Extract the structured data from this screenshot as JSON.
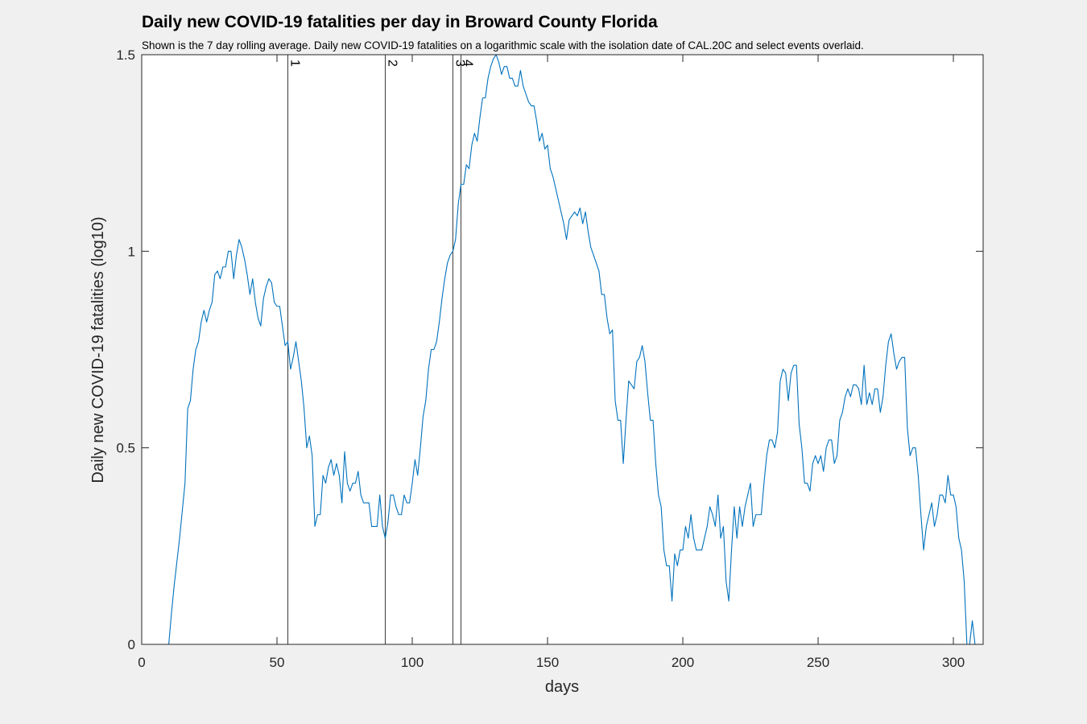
{
  "chart_data": {
    "type": "line",
    "title": "Daily new COVID-19 fatalities per day in Broward County Florida",
    "subtitle": "Shown is the 7 day rolling average. Daily new COVID-19 fatalities on a logarithmic scale with the isolation date of CAL.20C and select events overlaid.",
    "xlabel": "days",
    "ylabel": "Daily new COVID-19 fatalities (log10)",
    "xlim": [
      0,
      311
    ],
    "ylim": [
      0,
      1.5
    ],
    "x_ticks": [
      0,
      50,
      100,
      150,
      200,
      250,
      300
    ],
    "x_tick_labels": [
      "0",
      "50",
      "100",
      "150",
      "200",
      "250",
      "300"
    ],
    "y_ticks": [
      0,
      0.5,
      1,
      1.5
    ],
    "y_tick_labels": [
      "0",
      "0.5",
      "1",
      "1.5"
    ],
    "grid": false,
    "line_color": "#0072bd",
    "events": [
      {
        "label": "1",
        "x": 54
      },
      {
        "label": "2",
        "x": 90
      },
      {
        "label": "3",
        "x": 115
      },
      {
        "label": "4",
        "x": 118
      }
    ],
    "series": [
      {
        "x_start": 10,
        "values": [
          0.0,
          0.08,
          0.15,
          0.21,
          0.27,
          0.34,
          0.41,
          0.6,
          0.62,
          0.7,
          0.75,
          0.77,
          0.82,
          0.85,
          0.82,
          0.85,
          0.87,
          0.94,
          0.95,
          0.93,
          0.96,
          0.96,
          1.0,
          1.0,
          0.93,
          0.99,
          1.03,
          1.01,
          0.98,
          0.94,
          0.89,
          0.93,
          0.87,
          0.83,
          0.81,
          0.88,
          0.91,
          0.93,
          0.92,
          0.87,
          0.86,
          0.86,
          0.81,
          0.76,
          0.77,
          0.7,
          0.73,
          0.77,
          0.72,
          0.67,
          0.6,
          0.5,
          0.53,
          0.48,
          0.3,
          0.33,
          0.33,
          0.43,
          0.41,
          0.45,
          0.47,
          0.43,
          0.46,
          0.43,
          0.36,
          0.49,
          0.41,
          0.39,
          0.41,
          0.41,
          0.44,
          0.38,
          0.36,
          0.36,
          0.36,
          0.3,
          0.3,
          0.3,
          0.38,
          0.3,
          0.27,
          0.31,
          0.38,
          0.38,
          0.35,
          0.33,
          0.33,
          0.38,
          0.36,
          0.36,
          0.41,
          0.47,
          0.43,
          0.5,
          0.58,
          0.62,
          0.7,
          0.75,
          0.75,
          0.77,
          0.82,
          0.88,
          0.93,
          0.97,
          0.99,
          1.0,
          1.03,
          1.12,
          1.17,
          1.17,
          1.22,
          1.21,
          1.27,
          1.3,
          1.28,
          1.34,
          1.39,
          1.39,
          1.44,
          1.47,
          1.49,
          1.5,
          1.48,
          1.45,
          1.47,
          1.47,
          1.44,
          1.44,
          1.42,
          1.42,
          1.46,
          1.42,
          1.4,
          1.38,
          1.37,
          1.37,
          1.33,
          1.28,
          1.3,
          1.26,
          1.27,
          1.21,
          1.19,
          1.16,
          1.13,
          1.1,
          1.07,
          1.03,
          1.08,
          1.09,
          1.1,
          1.09,
          1.11,
          1.07,
          1.1,
          1.05,
          1.01,
          0.99,
          0.97,
          0.95,
          0.89,
          0.89,
          0.83,
          0.79,
          0.8,
          0.62,
          0.57,
          0.57,
          0.46,
          0.57,
          0.67,
          0.66,
          0.65,
          0.72,
          0.73,
          0.76,
          0.72,
          0.64,
          0.57,
          0.57,
          0.46,
          0.38,
          0.35,
          0.24,
          0.2,
          0.2,
          0.11,
          0.23,
          0.2,
          0.24,
          0.24,
          0.3,
          0.27,
          0.33,
          0.27,
          0.24,
          0.24,
          0.24,
          0.27,
          0.3,
          0.35,
          0.33,
          0.3,
          0.38,
          0.27,
          0.3,
          0.16,
          0.11,
          0.24,
          0.35,
          0.27,
          0.35,
          0.3,
          0.35,
          0.38,
          0.41,
          0.3,
          0.33,
          0.33,
          0.33,
          0.41,
          0.48,
          0.52,
          0.52,
          0.5,
          0.54,
          0.67,
          0.7,
          0.69,
          0.62,
          0.69,
          0.71,
          0.71,
          0.56,
          0.5,
          0.41,
          0.41,
          0.39,
          0.46,
          0.48,
          0.46,
          0.48,
          0.44,
          0.5,
          0.52,
          0.52,
          0.46,
          0.48,
          0.57,
          0.59,
          0.63,
          0.65,
          0.63,
          0.66,
          0.66,
          0.65,
          0.61,
          0.71,
          0.61,
          0.64,
          0.61,
          0.65,
          0.65,
          0.59,
          0.63,
          0.71,
          0.77,
          0.79,
          0.74,
          0.7,
          0.72,
          0.73,
          0.73,
          0.55,
          0.48,
          0.5,
          0.5,
          0.43,
          0.33,
          0.24,
          0.3,
          0.33,
          0.36,
          0.3,
          0.33,
          0.38,
          0.38,
          0.36,
          0.43,
          0.38,
          0.38,
          0.35,
          0.27,
          0.24,
          0.16,
          0.0,
          0.0,
          0.06,
          0.0,
          0.0
        ]
      }
    ]
  }
}
